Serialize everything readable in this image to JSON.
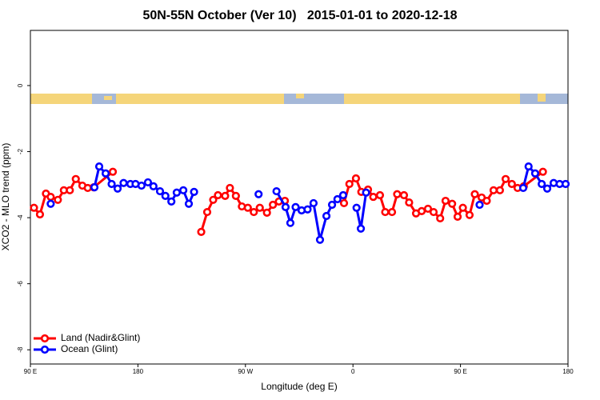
{
  "chart_data": {
    "type": "line",
    "title": "50N-55N October (Ver 10)   2015-01-01 to 2020-12-18",
    "xlabel": "Longitude (deg E)",
    "ylabel": "XCO2 - MLO trend (ppm)",
    "xlim": [
      90,
      540
    ],
    "xticks": [
      {
        "value": 90,
        "label": "90 E"
      },
      {
        "value": 180,
        "label": "180"
      },
      {
        "value": 270,
        "label": "90 W"
      },
      {
        "value": 360,
        "label": "0"
      },
      {
        "value": 450,
        "label": "90 E"
      },
      {
        "value": 540,
        "label": "180"
      }
    ],
    "ylim": [
      -8.43,
      1.67
    ],
    "yticks": [
      0,
      -2,
      -4,
      -6,
      -8
    ],
    "legend": "bottom-left",
    "series": [
      {
        "name": "Land (Nadir&Glint)",
        "color": "#ff0000",
        "x": [
          93,
          98,
          103,
          107,
          113,
          118,
          123,
          128,
          133.5,
          138,
          143,
          159,
          null,
          233,
          238,
          243,
          247,
          253,
          257,
          262,
          267,
          272,
          277,
          282,
          288,
          293,
          298,
          303,
          null,
          352.5,
          357,
          362.5,
          367,
          372.6,
          377,
          382.6,
          387,
          392.7,
          397,
          402.7,
          407,
          412.8,
          417.5,
          422.8,
          427.5,
          433,
          437.5,
          443,
          447.6,
          452,
          457.6,
          462,
          467.7,
          472,
          477.7,
          483,
          487.8,
          493,
          497.8,
          503,
          519
        ],
        "values": [
          -3.7,
          -3.9,
          -3.27,
          -3.37,
          -3.46,
          -3.17,
          -3.17,
          -2.83,
          -3.03,
          -3.1,
          -3.08,
          -2.61,
          null,
          -4.43,
          -3.83,
          -3.46,
          -3.32,
          -3.34,
          -3.1,
          -3.34,
          -3.66,
          -3.7,
          -3.83,
          -3.7,
          -3.85,
          -3.61,
          -3.51,
          -3.49,
          null,
          -3.56,
          -2.98,
          -2.81,
          -3.22,
          -3.15,
          -3.37,
          -3.32,
          -3.83,
          -3.83,
          -3.29,
          -3.32,
          -3.54,
          -3.87,
          -3.8,
          -3.73,
          -3.83,
          -4.02,
          -3.49,
          -3.58,
          -3.97,
          -3.7,
          -3.92,
          -3.29,
          -3.39,
          -3.49,
          -3.17,
          -3.17,
          -2.83,
          -2.98,
          -3.1,
          -3.05,
          -2.61
        ]
      },
      {
        "name": "Ocean (Glint)",
        "color": "#0000ff",
        "x": [
          107,
          null,
          143.6,
          147.6,
          153,
          158,
          163,
          168,
          173.7,
          178,
          183,
          188.4,
          193,
          198.5,
          203,
          208,
          212.5,
          218,
          222.6,
          227,
          null,
          281,
          null,
          296,
          303.6,
          307.6,
          312,
          317,
          322,
          327,
          332.4,
          337.8,
          342.5,
          347,
          351.8,
          null,
          363,
          366.6,
          371,
          null,
          466,
          null,
          502.5,
          507,
          512.5,
          518,
          522.6,
          528,
          533,
          538
        ],
        "values": [
          -3.58,
          null,
          -3.08,
          -2.45,
          -2.66,
          -2.98,
          -3.12,
          -2.95,
          -2.98,
          -2.98,
          -3.03,
          -2.93,
          -3.05,
          -3.2,
          -3.34,
          -3.51,
          -3.24,
          -3.17,
          -3.58,
          -3.22,
          null,
          -3.29,
          null,
          -3.2,
          -3.68,
          -4.16,
          -3.68,
          -3.78,
          -3.75,
          -3.56,
          -4.67,
          -3.95,
          -3.61,
          -3.44,
          -3.32,
          null,
          -3.7,
          -4.33,
          -3.24,
          null,
          -3.61,
          null,
          -3.1,
          -2.45,
          -2.66,
          -2.98,
          -3.12,
          -2.95,
          -2.98,
          -2.98
        ]
      }
    ]
  }
}
